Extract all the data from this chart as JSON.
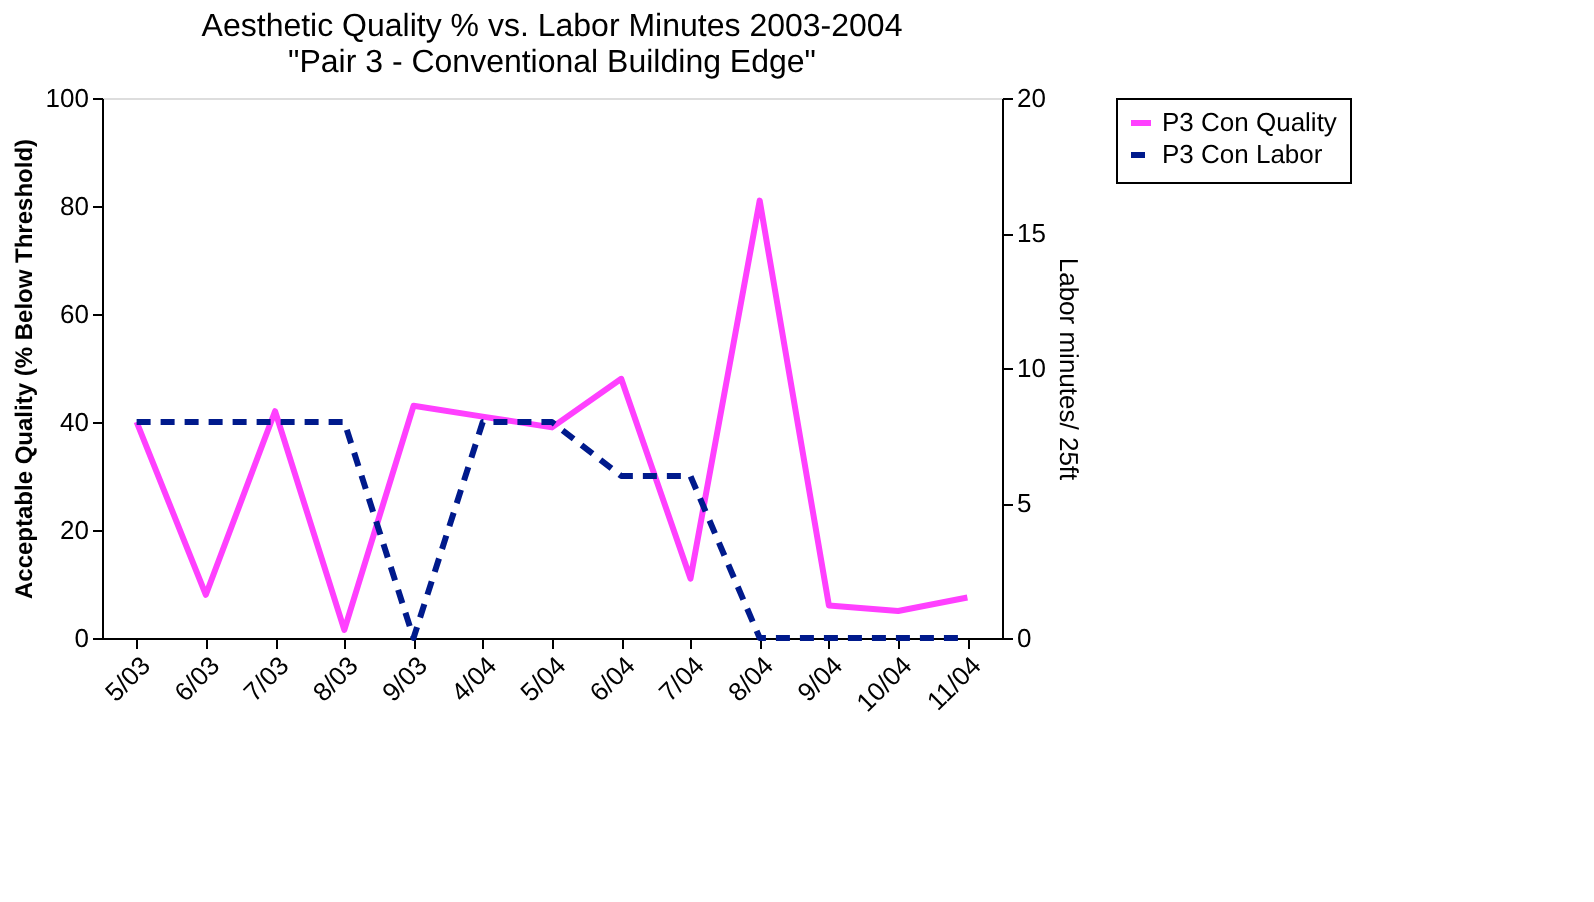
{
  "chart_data": {
    "type": "line",
    "title": "Aesthetic Quality % vs. Labor Minutes 2003-2004\n\"Pair 3 - Conventional Building Edge\"",
    "ylabel": "Acceptable Quality (% Below Threshold)",
    "y2label": "Labor minutes/ 25ft",
    "categories": [
      "5/03",
      "6/03",
      "7/03",
      "8/03",
      "9/03",
      "4/04",
      "5/04",
      "6/04",
      "7/04",
      "8/04",
      "9/04",
      "10/04",
      "11/04"
    ],
    "series": [
      {
        "name": "P3 Con Quality",
        "color": "#ff40ff",
        "line_style": "solid",
        "values": [
          40,
          8,
          42,
          1.5,
          43,
          41,
          39,
          48,
          11,
          81,
          6,
          5,
          7.5
        ]
      },
      {
        "name": "P3 Con Labor",
        "color": "#001a8c",
        "line_style": "dashed",
        "axis": "y2",
        "values": [
          8,
          8,
          8,
          8,
          0,
          8,
          8,
          6,
          6,
          0,
          0,
          0,
          0
        ]
      }
    ],
    "ylim": [
      0,
      100
    ],
    "yticks": [
      0,
      20,
      40,
      60,
      80,
      100
    ],
    "y2lim": [
      0,
      20
    ],
    "y2ticks": [
      0,
      5,
      10,
      15,
      20
    ],
    "grid": false,
    "legend": "right",
    "marker": "none"
  }
}
